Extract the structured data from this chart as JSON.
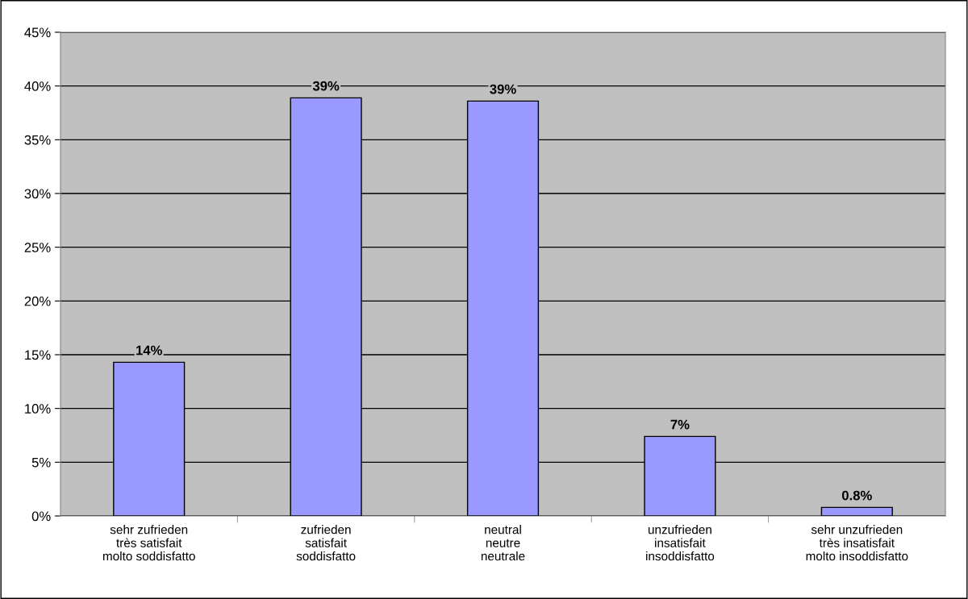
{
  "chart_data": {
    "type": "bar",
    "categories": [
      "sehr zufrieden\ntrès satisfait\nmolto soddisfatto",
      "zufrieden\nsatisfait\nsoddisfatto",
      "neutral\nneutre\nneutrale",
      "unzufrieden\ninsatisfait\ninsoddisfatto",
      "sehr unzufrieden\ntrès insatisfait\nmolto insoddisfatto"
    ],
    "values": [
      14.3,
      38.9,
      38.6,
      7.4,
      0.8
    ],
    "value_labels": [
      "14%",
      "39%",
      "39%",
      "7%",
      "0.8%"
    ],
    "color": "#9999ff",
    "ylim": [
      0,
      45
    ],
    "yticks": [
      {
        "value": 0,
        "label": "0%"
      },
      {
        "value": 5,
        "label": "5%"
      },
      {
        "value": 10,
        "label": "10%"
      },
      {
        "value": 15,
        "label": "15%"
      },
      {
        "value": 20,
        "label": "20%"
      },
      {
        "value": 25,
        "label": "25%"
      },
      {
        "value": 30,
        "label": "30%"
      },
      {
        "value": 35,
        "label": "35%"
      },
      {
        "value": 40,
        "label": "40%"
      },
      {
        "value": 45,
        "label": "45%"
      }
    ],
    "grid": "y",
    "legend": false
  }
}
